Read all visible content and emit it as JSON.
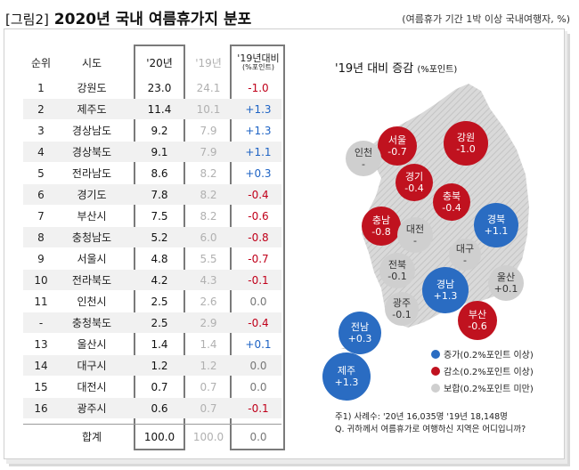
{
  "header": {
    "tag": "[그림2]",
    "title": "2020년 국내 여름휴가지 분포",
    "note": "(여름휴가 기간 1박 이상 국내여행자, %)"
  },
  "table": {
    "columns": [
      "순위",
      "시도",
      "'20년",
      "'19년",
      "'19년대비",
      "(%포인트)"
    ],
    "rows": [
      {
        "rank": "1",
        "region": "강원도",
        "y2020": "23.0",
        "y2019": "24.1",
        "change": "-1.0",
        "dir": "neg"
      },
      {
        "rank": "2",
        "region": "제주도",
        "y2020": "11.4",
        "y2019": "10.1",
        "change": "+1.3",
        "dir": "pos"
      },
      {
        "rank": "3",
        "region": "경상남도",
        "y2020": "9.2",
        "y2019": "7.9",
        "change": "+1.3",
        "dir": "pos"
      },
      {
        "rank": "4",
        "region": "경상북도",
        "y2020": "9.1",
        "y2019": "7.9",
        "change": "+1.1",
        "dir": "pos"
      },
      {
        "rank": "5",
        "region": "전라남도",
        "y2020": "8.6",
        "y2019": "8.2",
        "change": "+0.3",
        "dir": "pos"
      },
      {
        "rank": "6",
        "region": "경기도",
        "y2020": "7.8",
        "y2019": "8.2",
        "change": "-0.4",
        "dir": "neg"
      },
      {
        "rank": "7",
        "region": "부산시",
        "y2020": "7.5",
        "y2019": "8.2",
        "change": "-0.6",
        "dir": "neg"
      },
      {
        "rank": "8",
        "region": "충청남도",
        "y2020": "5.2",
        "y2019": "6.0",
        "change": "-0.8",
        "dir": "neg"
      },
      {
        "rank": "9",
        "region": "서울시",
        "y2020": "4.8",
        "y2019": "5.5",
        "change": "-0.7",
        "dir": "neg"
      },
      {
        "rank": "10",
        "region": "전라북도",
        "y2020": "4.2",
        "y2019": "4.3",
        "change": "-0.1",
        "dir": "neg"
      },
      {
        "rank": "11",
        "region": "인천시",
        "y2020": "2.5",
        "y2019": "2.6",
        "change": "0.0",
        "dir": "zero"
      },
      {
        "rank": "-",
        "region": "충청북도",
        "y2020": "2.5",
        "y2019": "2.9",
        "change": "-0.4",
        "dir": "neg"
      },
      {
        "rank": "13",
        "region": "울산시",
        "y2020": "1.4",
        "y2019": "1.4",
        "change": "+0.1",
        "dir": "pos"
      },
      {
        "rank": "14",
        "region": "대구시",
        "y2020": "1.2",
        "y2019": "1.2",
        "change": "0.0",
        "dir": "zero"
      },
      {
        "rank": "15",
        "region": "대전시",
        "y2020": "0.7",
        "y2019": "0.7",
        "change": "0.0",
        "dir": "zero"
      },
      {
        "rank": "16",
        "region": "광주시",
        "y2020": "0.6",
        "y2019": "0.7",
        "change": "-0.1",
        "dir": "neg"
      }
    ],
    "total": {
      "label": "합계",
      "y2020": "100.0",
      "y2019": "100.0",
      "change": "0.0"
    }
  },
  "map": {
    "title": "'19년 대비 증감",
    "title_unit": "(%포인트)",
    "bubbles": [
      {
        "name": "서울",
        "value": "-0.7",
        "kind": "down"
      },
      {
        "name": "강원",
        "value": "-1.0",
        "kind": "down"
      },
      {
        "name": "인천",
        "value": "-",
        "kind": "keep"
      },
      {
        "name": "경기",
        "value": "-0.4",
        "kind": "down"
      },
      {
        "name": "충북",
        "value": "-0.4",
        "kind": "down"
      },
      {
        "name": "충남",
        "value": "-0.8",
        "kind": "down"
      },
      {
        "name": "대전",
        "value": "-",
        "kind": "keep"
      },
      {
        "name": "경북",
        "value": "+1.1",
        "kind": "up"
      },
      {
        "name": "대구",
        "value": "-",
        "kind": "keep"
      },
      {
        "name": "전북",
        "value": "-0.1",
        "kind": "keep"
      },
      {
        "name": "경남",
        "value": "+1.3",
        "kind": "up"
      },
      {
        "name": "울산",
        "value": "+0.1",
        "kind": "keep"
      },
      {
        "name": "광주",
        "value": "-0.1",
        "kind": "keep"
      },
      {
        "name": "부산",
        "value": "-0.6",
        "kind": "down"
      },
      {
        "name": "전남",
        "value": "+0.3",
        "kind": "up"
      },
      {
        "name": "제주",
        "value": "+1.3",
        "kind": "up"
      }
    ],
    "legend": [
      {
        "label": "증가(0.2%포인트 이상)",
        "color": "#2a6cc2"
      },
      {
        "label": "감소(0.2%포인트 이상)",
        "color": "#c0121f"
      },
      {
        "label": "보합(0.2%포인트 미만)",
        "color": "#cfcfcf"
      }
    ]
  },
  "footnote": {
    "line1": "주1) 사례수: '20년 16,035명 '19년 18,148명",
    "line2": "Q. 귀하께서 여름휴가로 여행하신 지역은 어디입니까?"
  },
  "colors": {
    "increase": "#2a6cc2",
    "decrease": "#c0121f",
    "flat": "#cfcfcf"
  }
}
